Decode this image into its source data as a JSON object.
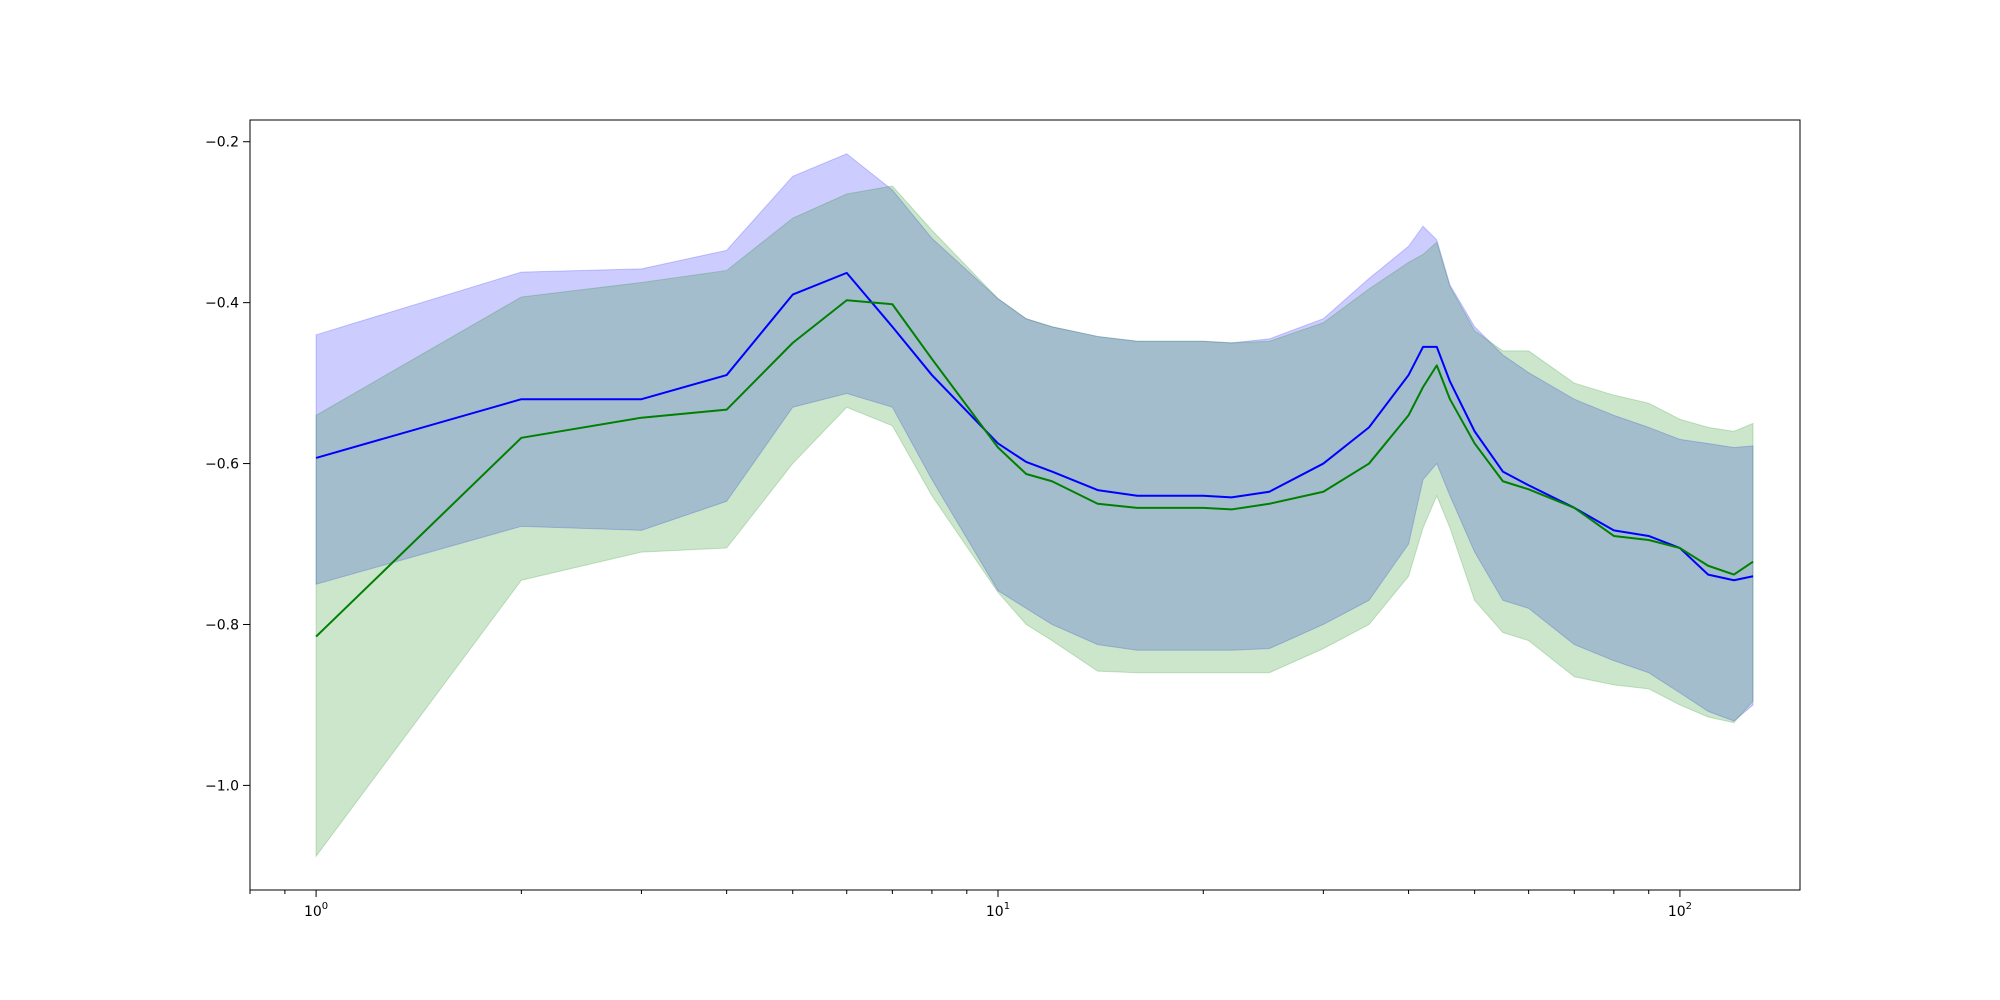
{
  "chart_data": {
    "type": "line",
    "title": "",
    "xlabel": "",
    "ylabel": "",
    "xscale": "log",
    "xlim": [
      0.8,
      150
    ],
    "ylim": [
      -1.13,
      -0.173
    ],
    "grid": false,
    "legend": "none",
    "x_ticks": [
      {
        "value": 1,
        "base": "10",
        "exp": "0"
      },
      {
        "value": 10,
        "base": "10",
        "exp": "1"
      },
      {
        "value": 100,
        "base": "10",
        "exp": "2"
      }
    ],
    "y_ticks": [
      {
        "value": -0.2,
        "label": "−0.2"
      },
      {
        "value": -0.4,
        "label": "−0.4"
      },
      {
        "value": -0.6,
        "label": "−0.6"
      },
      {
        "value": -0.8,
        "label": "−0.8"
      },
      {
        "value": -1.0,
        "label": "−1.0"
      }
    ],
    "x": [
      1,
      2,
      3,
      4,
      5,
      6,
      7,
      8,
      10,
      11,
      12,
      14,
      16,
      20,
      22,
      25,
      30,
      35,
      40,
      42,
      44,
      46,
      50,
      55,
      60,
      70,
      80,
      90,
      100,
      110,
      120,
      128
    ],
    "series": [
      {
        "color": "#0000ff",
        "fill_color": "#0000ff",
        "fill_alpha": 0.2,
        "values": [
          -0.593,
          -0.52,
          -0.52,
          -0.49,
          -0.39,
          -0.363,
          -0.43,
          -0.49,
          -0.575,
          -0.598,
          -0.61,
          -0.633,
          -0.64,
          -0.64,
          -0.642,
          -0.635,
          -0.6,
          -0.555,
          -0.49,
          -0.455,
          -0.455,
          -0.498,
          -0.56,
          -0.61,
          -0.627,
          -0.655,
          -0.683,
          -0.69,
          -0.705,
          -0.738,
          -0.745,
          -0.74
        ],
        "upper": [
          -0.44,
          -0.362,
          -0.358,
          -0.335,
          -0.243,
          -0.215,
          -0.26,
          -0.32,
          -0.395,
          -0.42,
          -0.43,
          -0.442,
          -0.448,
          -0.448,
          -0.45,
          -0.445,
          -0.42,
          -0.37,
          -0.33,
          -0.305,
          -0.322,
          -0.378,
          -0.43,
          -0.465,
          -0.487,
          -0.52,
          -0.54,
          -0.555,
          -0.57,
          -0.575,
          -0.58,
          -0.578
        ],
        "lower": [
          -0.75,
          -0.678,
          -0.683,
          -0.647,
          -0.53,
          -0.513,
          -0.53,
          -0.62,
          -0.758,
          -0.78,
          -0.8,
          -0.825,
          -0.832,
          -0.832,
          -0.832,
          -0.83,
          -0.8,
          -0.77,
          -0.7,
          -0.62,
          -0.6,
          -0.64,
          -0.71,
          -0.77,
          -0.78,
          -0.825,
          -0.845,
          -0.86,
          -0.885,
          -0.908,
          -0.92,
          -0.9
        ]
      },
      {
        "color": "#008000",
        "fill_color": "#008000",
        "fill_alpha": 0.2,
        "values": [
          -0.815,
          -0.568,
          -0.543,
          -0.533,
          -0.45,
          -0.397,
          -0.402,
          -0.47,
          -0.58,
          -0.613,
          -0.622,
          -0.65,
          -0.655,
          -0.655,
          -0.657,
          -0.65,
          -0.635,
          -0.6,
          -0.54,
          -0.505,
          -0.478,
          -0.52,
          -0.575,
          -0.622,
          -0.632,
          -0.655,
          -0.69,
          -0.695,
          -0.705,
          -0.727,
          -0.738,
          -0.722
        ],
        "upper": [
          -0.54,
          -0.393,
          -0.375,
          -0.36,
          -0.295,
          -0.265,
          -0.255,
          -0.31,
          -0.395,
          -0.42,
          -0.43,
          -0.442,
          -0.448,
          -0.448,
          -0.45,
          -0.448,
          -0.425,
          -0.383,
          -0.35,
          -0.34,
          -0.325,
          -0.38,
          -0.435,
          -0.46,
          -0.46,
          -0.5,
          -0.515,
          -0.525,
          -0.545,
          -0.555,
          -0.56,
          -0.55
        ],
        "lower": [
          -1.088,
          -0.745,
          -0.71,
          -0.705,
          -0.6,
          -0.53,
          -0.553,
          -0.64,
          -0.76,
          -0.8,
          -0.82,
          -0.858,
          -0.86,
          -0.86,
          -0.86,
          -0.86,
          -0.83,
          -0.8,
          -0.74,
          -0.68,
          -0.64,
          -0.68,
          -0.77,
          -0.81,
          -0.82,
          -0.865,
          -0.875,
          -0.88,
          -0.9,
          -0.915,
          -0.922,
          -0.895
        ]
      }
    ]
  }
}
